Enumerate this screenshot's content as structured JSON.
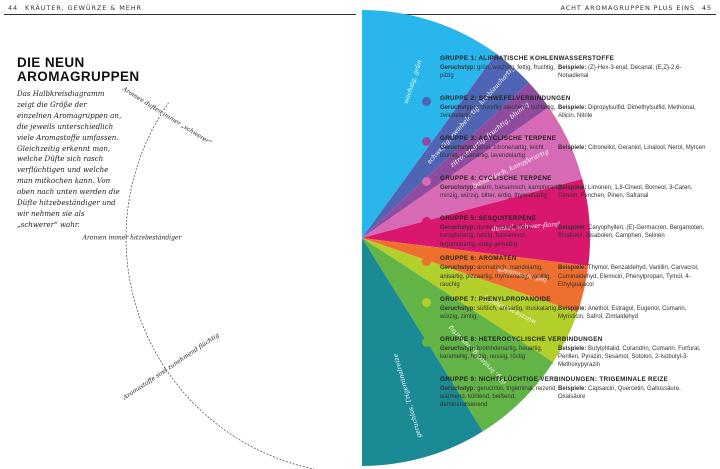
{
  "header": {
    "left_page": "44",
    "left_title": "KRÄUTER, GEWÜRZE & MEHR",
    "right_title": "ACHT AROMAGRUPPEN PLUS EINS",
    "right_page": "45"
  },
  "heading": {
    "line1": "DIE NEUN",
    "line2": "AROMAGRUPPEN"
  },
  "intro": "Das Halbkreisdiagramm zeigt die Größe der einzelnen Aromagruppen an, die jeweils unterschiedlich viele Aromastoffe umfassen. Gleichzeitig erkennt man, welche Düfte sich rasch verflüchtigen und welche man mitkochen kann. Von oben nach unten werden die Düfte hitzebeständiger und wir nehmen sie als „schwerer“ wahr.",
  "chart_data": {
    "type": "pie",
    "subtype": "semicircle",
    "orientation": "right-half",
    "categories": [
      "Gruppe 1",
      "Gruppe 2",
      "Gruppe 3",
      "Gruppe 4",
      "Gruppe 5",
      "Gruppe 6",
      "Gruppe 7",
      "Gruppe 8",
      "Gruppe 9"
    ],
    "values": [
      36,
      11,
      8,
      20,
      22,
      12,
      14,
      25,
      32
    ],
    "segment_labels": [
      "wachsig, grün",
      "schweflig, zwiebelartig, knoblauchartig",
      "zitronenartig, fruchtig, blumig",
      "balsamisch, kampferartig",
      "dunkel, schwer-floral",
      "tief, aromatisch",
      "würzig-warmartig",
      "ölig, brotartig, nussartig",
      "geruchlos, Trigeminalreize"
    ],
    "colors": [
      "#29b6ec",
      "#4f65b3",
      "#8e4b9f",
      "#d76ab5",
      "#d9176e",
      "#ef6f2e",
      "#b3cf2a",
      "#63b446",
      "#1a8a95"
    ],
    "arc_labels": [
      "Aromen duften immer „schwerer“",
      "Aromen immer hitzebeständiger",
      "Aromastoffe sind zunehmend flüchtig"
    ]
  },
  "groups": [
    {
      "title": "GRUPPE 1: ALIPHATISCHE KOHLENWASSERSTOFFE",
      "color": "#29b6ec",
      "geruch_label": "Geruchstyp:",
      "geruch_text": "grün, wachsig, fettig, fruchtig, pilzig",
      "beispiele_label": "Beispiele:",
      "beispiele_text": "(Z)-Hex-3-enal, Decanal, (E,Z)-2,6-Nonadienal"
    },
    {
      "title": "GRUPPE 2: SCHWEFELVERBINDUNGEN",
      "color": "#4f65b3",
      "geruch_label": "Geruchstyp:",
      "geruch_text": "schweflig stechend, kohlartig, zwiebelartig",
      "beispiele_label": "Beispiele:",
      "beispiele_text": "Dipropylsulfid, Dimethylsulfid, Methional, Allicin, Nitrile"
    },
    {
      "title": "GRUPPE 3: ACYCLISCHE TERPENE",
      "color": "#8e4b9f",
      "geruch_label": "Geruchstyp:",
      "geruch_text": "floral, zitronenartig, leicht blumig, rosenartig, lavendelartig",
      "beispiele_label": "Beispiele:",
      "beispiele_text": "Citronellol, Geraniol, Linalool, Nerol, Myrcen"
    },
    {
      "title": "GRUPPE 4: CYCLISCHE TERPENE",
      "color": "#d76ab5",
      "geruch_label": "Geruchstyp:",
      "geruch_text": "warm, balsamisch, kampferartig, minzig, würzig, bitter, erdig, thymianartig",
      "beispiele_label": "Beispiele:",
      "beispiele_text": "Limonen, 1,8-Cineol, Borneol, 3-Caren, Carvon, Fenchen, Pinen, Safranal"
    },
    {
      "title": "GRUPPE 5: SESQUITERPENE",
      "color": "#d9176e",
      "geruch_label": "Geruchstyp:",
      "geruch_text": "dunkel, schwer-floral, kampferartig, holzig, balsamisch, terpentinartig, erdig-gemäßig",
      "beispiele_label": "Beispiele:",
      "beispiele_text": "Caryophyllen, (E)-Germacren, Bergamoten, Bisabolol, Bisabolen, Camphen, Selinen"
    },
    {
      "title": "GRUPPE 6: AROMATEN",
      "color": "#ef6f2e",
      "geruch_label": "Geruchstyp:",
      "geruch_text": "aromatisch, mandelartig, anisartig, pizzaartig, thymianartig, vanillig, rauchig",
      "beispiele_label": "Beispiele:",
      "beispiele_text": "Thymol, Benzaldehyd, Vanillin, Carvacrol, Cuminaldehyd, Elemicin, Phenylpropan, Tymol, 4-Ethylguajacol"
    },
    {
      "title": "GRUPPE 7: PHENYLPROPANOIDE",
      "color": "#b3cf2a",
      "geruch_label": "Geruchstyp:",
      "geruch_text": "süßlich, anisartig, muskatartig, würzig, zimtig",
      "beispiele_label": "Beispiele:",
      "beispiele_text": "Anethol, Estragol, Eugenol, Cumarin, Myristicin, Safrol, Zimtaldehyd"
    },
    {
      "title": "GRUPPE 8: HETEROCYCLISCHE VERBINDUNGEN",
      "color": "#63b446",
      "geruch_label": "Geruchstyp:",
      "geruch_text": "brotrindenartig, heuartig, karamellig, holzig, nussig, röstig",
      "beispiele_label": "Beispiele:",
      "beispiele_text": "Butylphtalid, Corandrin, Cumarin, Furfural, Perillen, Pyrazin, Sesamol, Sotolon, 2-Isobutyl-3-Methoxypyrazin"
    },
    {
      "title": "GRUPPE 9: NICHTFLÜCHTIGE VERBINDUNGEN: TRIGEMINALE REIZE",
      "color": "#1a8a95",
      "geruch_label": "Geruchstyp:",
      "geruch_text": "geruchlos, trigeminal, reizend, wärmend, kühlend, beißend, demineralisierend",
      "beispiele_label": "Beispiele:",
      "beispiele_text": "Capsaicin, Quercetin, Gallussäure, Oxalsäure"
    }
  ]
}
